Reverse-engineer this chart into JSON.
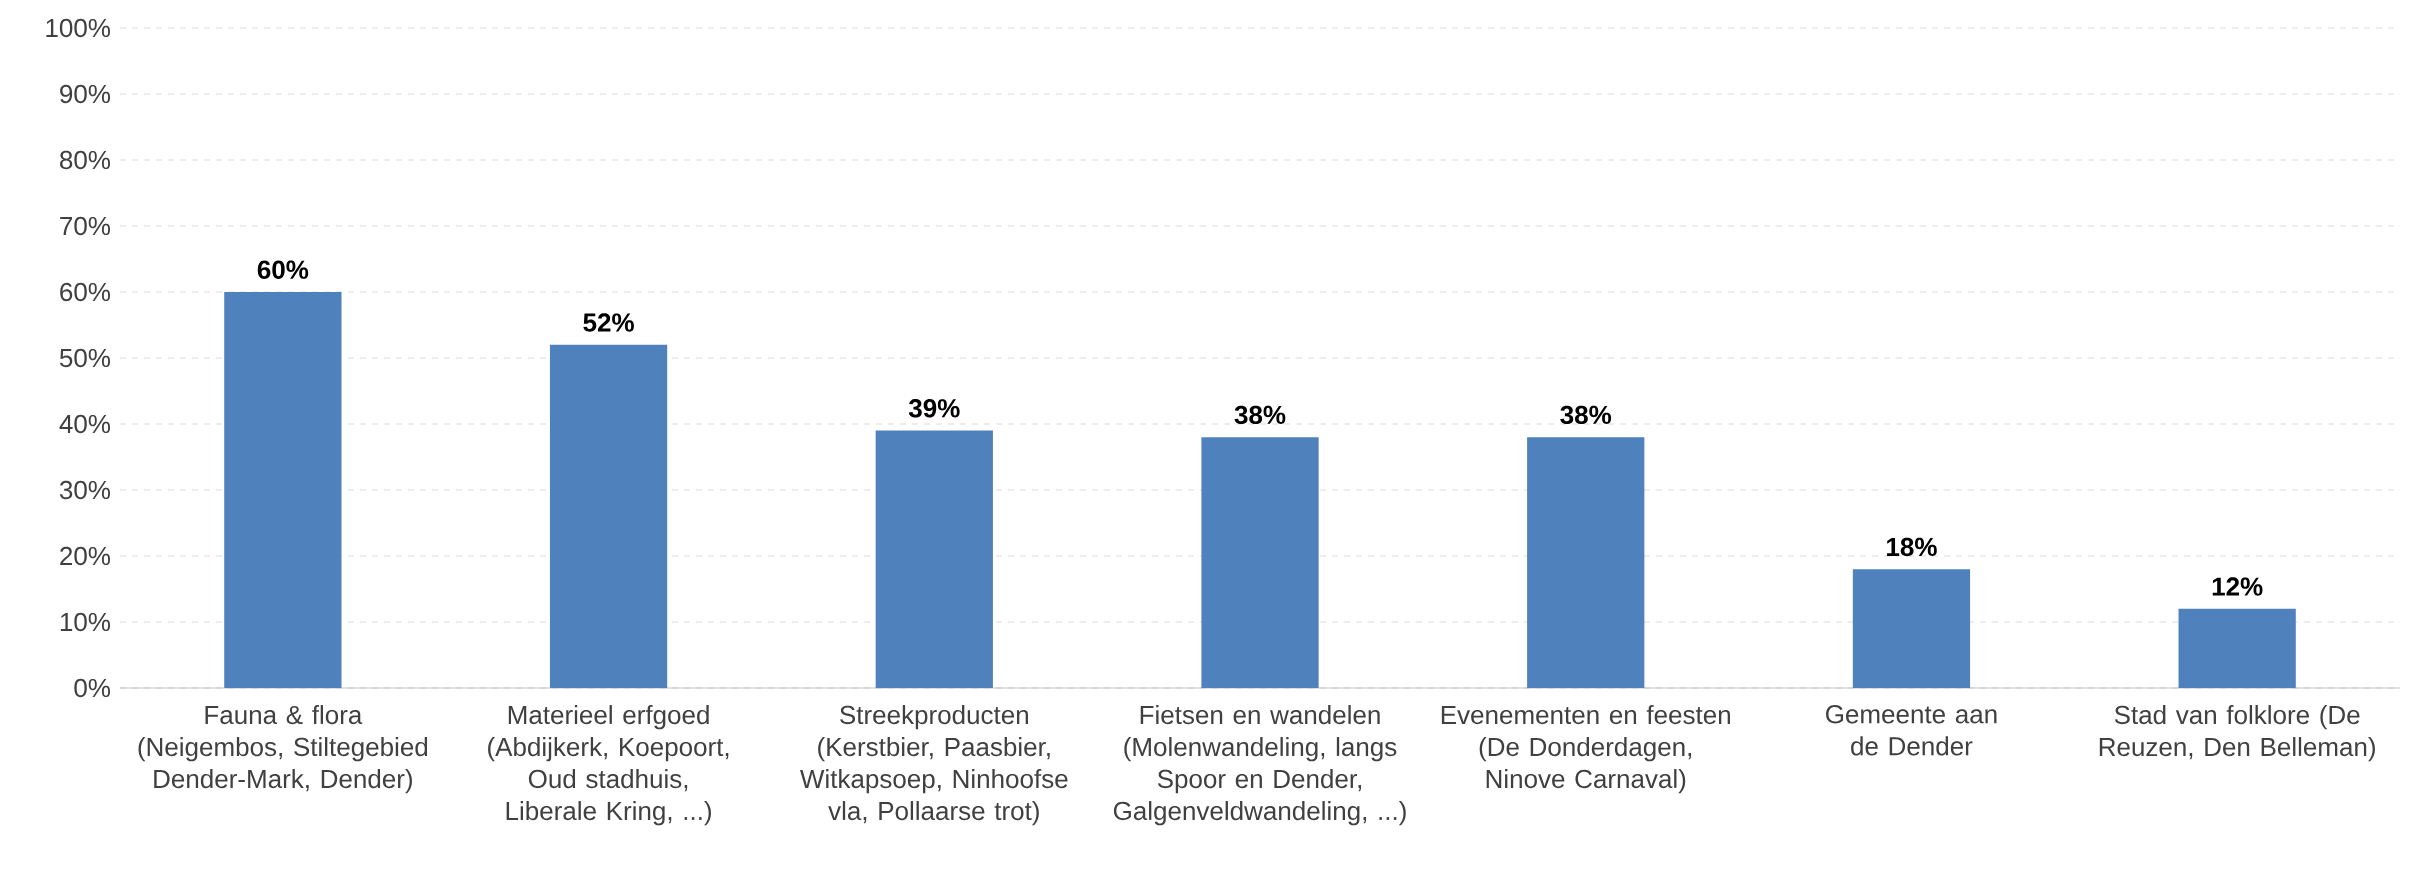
{
  "chart_data": {
    "type": "bar",
    "categories": [
      "Fauna & flora (Neigembos, Stiltegebied Dender-Mark, Dender)",
      "Materieel erfgoed (Abdijkerk, Koepoort, Oud stadhuis, Liberale Kring, ...)",
      "Streekproducten (Kerstbier, Paasbier, Witkapsoep, Ninhoofse vla, Pollaarse trot)",
      "Fietsen en wandelen (Molenwandeling, langs Spoor en Dender, Galgenveldwandeling, ...)",
      "Evenementen en feesten (De Donderdagen, Ninove Carnaval)",
      "Gemeente aan de Dender",
      "Stad van folklore (De Reuzen, Den Belleman)"
    ],
    "values": [
      60,
      52,
      39,
      38,
      38,
      18,
      12
    ],
    "value_labels": [
      "60%",
      "52%",
      "39%",
      "38%",
      "38%",
      "18%",
      "12%"
    ],
    "color": "#4f81bd",
    "ylim": [
      0,
      100
    ],
    "yticks": [
      {
        "value": 0,
        "label": "0%"
      },
      {
        "value": 10,
        "label": "10%"
      },
      {
        "value": 20,
        "label": "20%"
      },
      {
        "value": 30,
        "label": "30%"
      },
      {
        "value": 40,
        "label": "40%"
      },
      {
        "value": 50,
        "label": "50%"
      },
      {
        "value": 60,
        "label": "60%"
      },
      {
        "value": 70,
        "label": "70%"
      },
      {
        "value": 80,
        "label": "80%"
      },
      {
        "value": 90,
        "label": "90%"
      },
      {
        "value": 100,
        "label": "100%"
      }
    ],
    "grid": "y"
  }
}
